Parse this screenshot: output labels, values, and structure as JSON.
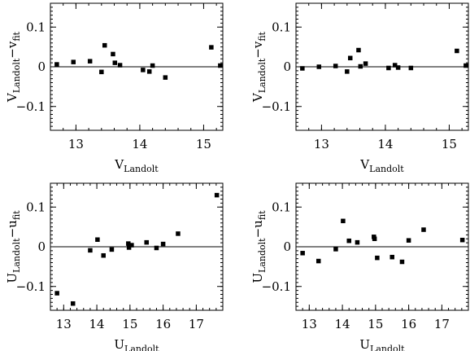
{
  "chart_data": [
    {
      "type": "scatter",
      "xlabel_main": "V",
      "xlabel_sub": "Landolt",
      "ylabel_main": "V",
      "ylabel_sub1": "Landolt",
      "ylabel_mid": "−v",
      "ylabel_sub2": "fit",
      "xlim": [
        12.6,
        15.3
      ],
      "ylim": [
        -0.16,
        0.16
      ],
      "xticks": [
        13,
        14,
        15
      ],
      "xtick_labels": [
        "13",
        "14",
        "15"
      ],
      "yticks": [
        0.1,
        0,
        -0.1
      ],
      "ytick_labels": [
        "0.1",
        "0",
        "−0.1"
      ],
      "x": [
        12.7,
        12.96,
        13.22,
        13.4,
        13.45,
        13.58,
        13.61,
        13.69,
        14.05,
        14.15,
        14.2,
        14.4,
        15.12,
        15.26
      ],
      "y": [
        0.006,
        0.012,
        0.014,
        -0.013,
        0.054,
        0.032,
        0.01,
        0.004,
        -0.008,
        -0.012,
        0.003,
        -0.027,
        0.049,
        0.003
      ]
    },
    {
      "type": "scatter",
      "xlabel_main": "V",
      "xlabel_sub": "Landolt",
      "ylabel_main": "V",
      "ylabel_sub1": "Landolt",
      "ylabel_mid": "−v",
      "ylabel_sub2": "fit",
      "xlim": [
        12.6,
        15.3
      ],
      "ylim": [
        -0.16,
        0.16
      ],
      "xticks": [
        13,
        14,
        15
      ],
      "xtick_labels": [
        "13",
        "14",
        "15"
      ],
      "yticks": [
        0.1,
        0,
        -0.1
      ],
      "ytick_labels": [
        "0.1",
        "0",
        "−0.1"
      ],
      "x": [
        12.7,
        12.96,
        13.22,
        13.4,
        13.45,
        13.58,
        13.61,
        13.69,
        14.05,
        14.15,
        14.2,
        14.4,
        15.12,
        15.26
      ],
      "y": [
        -0.004,
        0.0,
        0.002,
        -0.012,
        0.022,
        0.042,
        0.001,
        0.008,
        -0.003,
        0.004,
        -0.002,
        -0.003,
        0.04,
        0.003
      ]
    },
    {
      "type": "scatter",
      "xlabel_main": "U",
      "xlabel_sub": "Landolt",
      "ylabel_main": "U",
      "ylabel_sub1": "Landolt",
      "ylabel_mid": "−u",
      "ylabel_sub2": "fit",
      "xlim": [
        12.6,
        17.8
      ],
      "ylim": [
        -0.16,
        0.16
      ],
      "xticks": [
        13,
        14,
        15,
        16,
        17
      ],
      "xtick_labels": [
        "13",
        "14",
        "15",
        "16",
        "17"
      ],
      "yticks": [
        0.1,
        0,
        -0.1
      ],
      "ytick_labels": [
        "0.1",
        "0",
        "−0.1"
      ],
      "x": [
        12.8,
        13.28,
        13.8,
        14.02,
        14.2,
        14.45,
        14.95,
        14.97,
        15.05,
        15.5,
        15.8,
        16.0,
        16.45,
        17.62
      ],
      "y": [
        -0.117,
        -0.143,
        -0.009,
        0.018,
        -0.022,
        -0.007,
        0.008,
        -0.002,
        0.004,
        0.011,
        -0.003,
        0.007,
        0.033,
        0.13
      ]
    },
    {
      "type": "scatter",
      "xlabel_main": "U",
      "xlabel_sub": "Landolt",
      "ylabel_main": "U",
      "ylabel_sub1": "Landolt",
      "ylabel_mid": "−u",
      "ylabel_sub2": "fit",
      "xlim": [
        12.6,
        17.8
      ],
      "ylim": [
        -0.16,
        0.16
      ],
      "xticks": [
        13,
        14,
        15,
        16,
        17
      ],
      "xtick_labels": [
        "13",
        "14",
        "15",
        "16",
        "17"
      ],
      "yticks": [
        0.1,
        0,
        -0.1
      ],
      "ytick_labels": [
        "0.1",
        "0",
        "−0.1"
      ],
      "x": [
        12.8,
        13.28,
        13.8,
        14.02,
        14.2,
        14.45,
        14.95,
        14.97,
        15.05,
        15.5,
        15.8,
        16.0,
        16.45,
        17.62
      ],
      "y": [
        -0.016,
        -0.036,
        -0.006,
        0.065,
        0.015,
        0.011,
        0.025,
        0.02,
        -0.028,
        -0.026,
        -0.038,
        0.016,
        0.043,
        0.017
      ]
    }
  ]
}
